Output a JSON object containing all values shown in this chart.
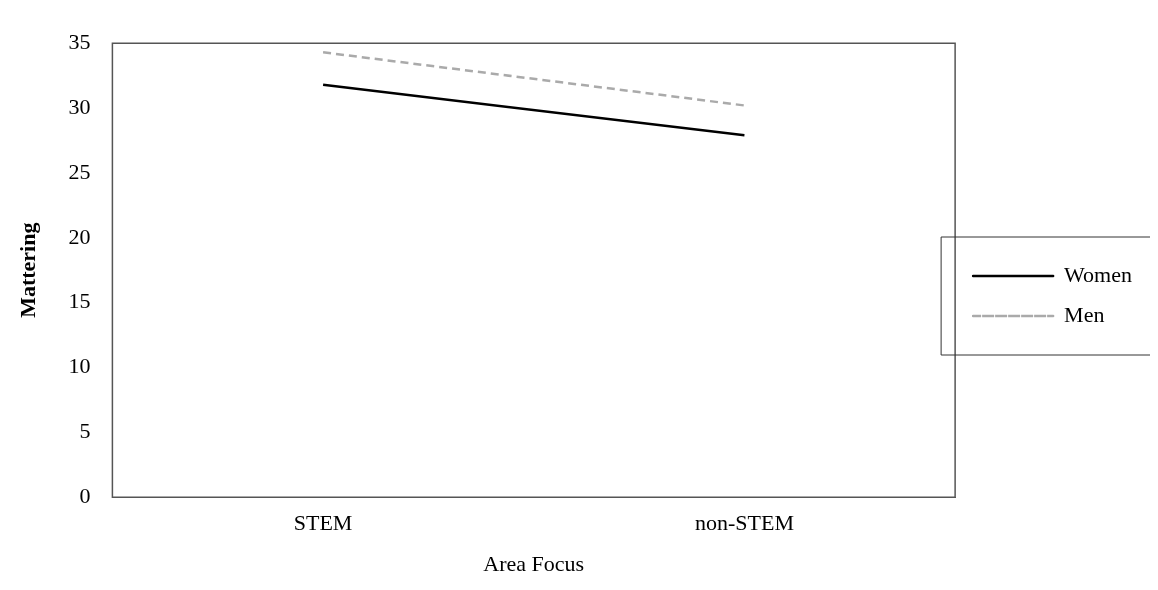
{
  "chart_data": {
    "type": "line",
    "xlabel": "Area Focus",
    "ylabel": "Mattering",
    "categories": [
      "STEM",
      "non-STEM"
    ],
    "series": [
      {
        "name": "Women",
        "color": "#000000",
        "values": [
          31.8,
          27.9
        ],
        "line_style": "solid"
      },
      {
        "name": "Men",
        "color": "#aaaaaa",
        "values": [
          34.3,
          30.2
        ],
        "line_style": "dashed"
      }
    ],
    "ylim": [
      0,
      35
    ],
    "yticks": [
      0,
      5,
      10,
      15,
      20,
      25,
      30,
      35
    ],
    "grid": false,
    "legend": "right",
    "marker": "none"
  }
}
